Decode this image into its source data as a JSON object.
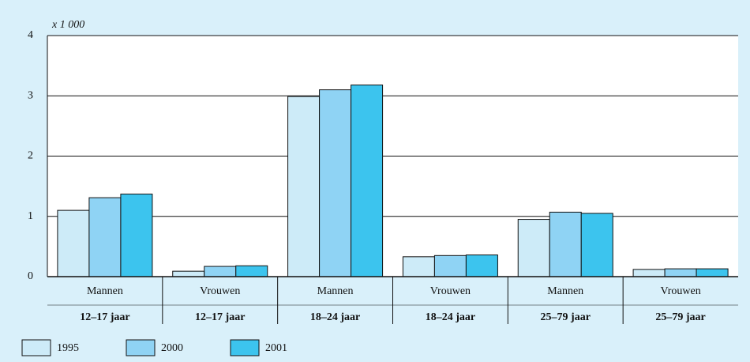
{
  "chart_data": {
    "type": "bar",
    "y_axis_label": "x 1 000",
    "categories": [
      "Mannen",
      "Vrouwen",
      "Mannen",
      "Vrouwen",
      "Mannen",
      "Vrouwen"
    ],
    "category_groups": [
      "12–17 jaar",
      "12–17 jaar",
      "18–24 jaar",
      "18–24 jaar",
      "25–79 jaar",
      "25–79 jaar"
    ],
    "series": [
      {
        "name": "1995",
        "color": "#cdebf8",
        "values": [
          1.1,
          0.09,
          2.99,
          0.33,
          0.95,
          0.12
        ]
      },
      {
        "name": "2000",
        "color": "#8fd3f4",
        "values": [
          1.31,
          0.17,
          3.1,
          0.35,
          1.07,
          0.13
        ]
      },
      {
        "name": "2001",
        "color": "#3cc4ee",
        "values": [
          1.37,
          0.18,
          3.18,
          0.36,
          1.05,
          0.13
        ]
      }
    ],
    "ylim": [
      0,
      4
    ],
    "yticks": [
      0,
      1,
      2,
      3,
      4
    ],
    "grid": true,
    "legend": "bottom-left"
  }
}
